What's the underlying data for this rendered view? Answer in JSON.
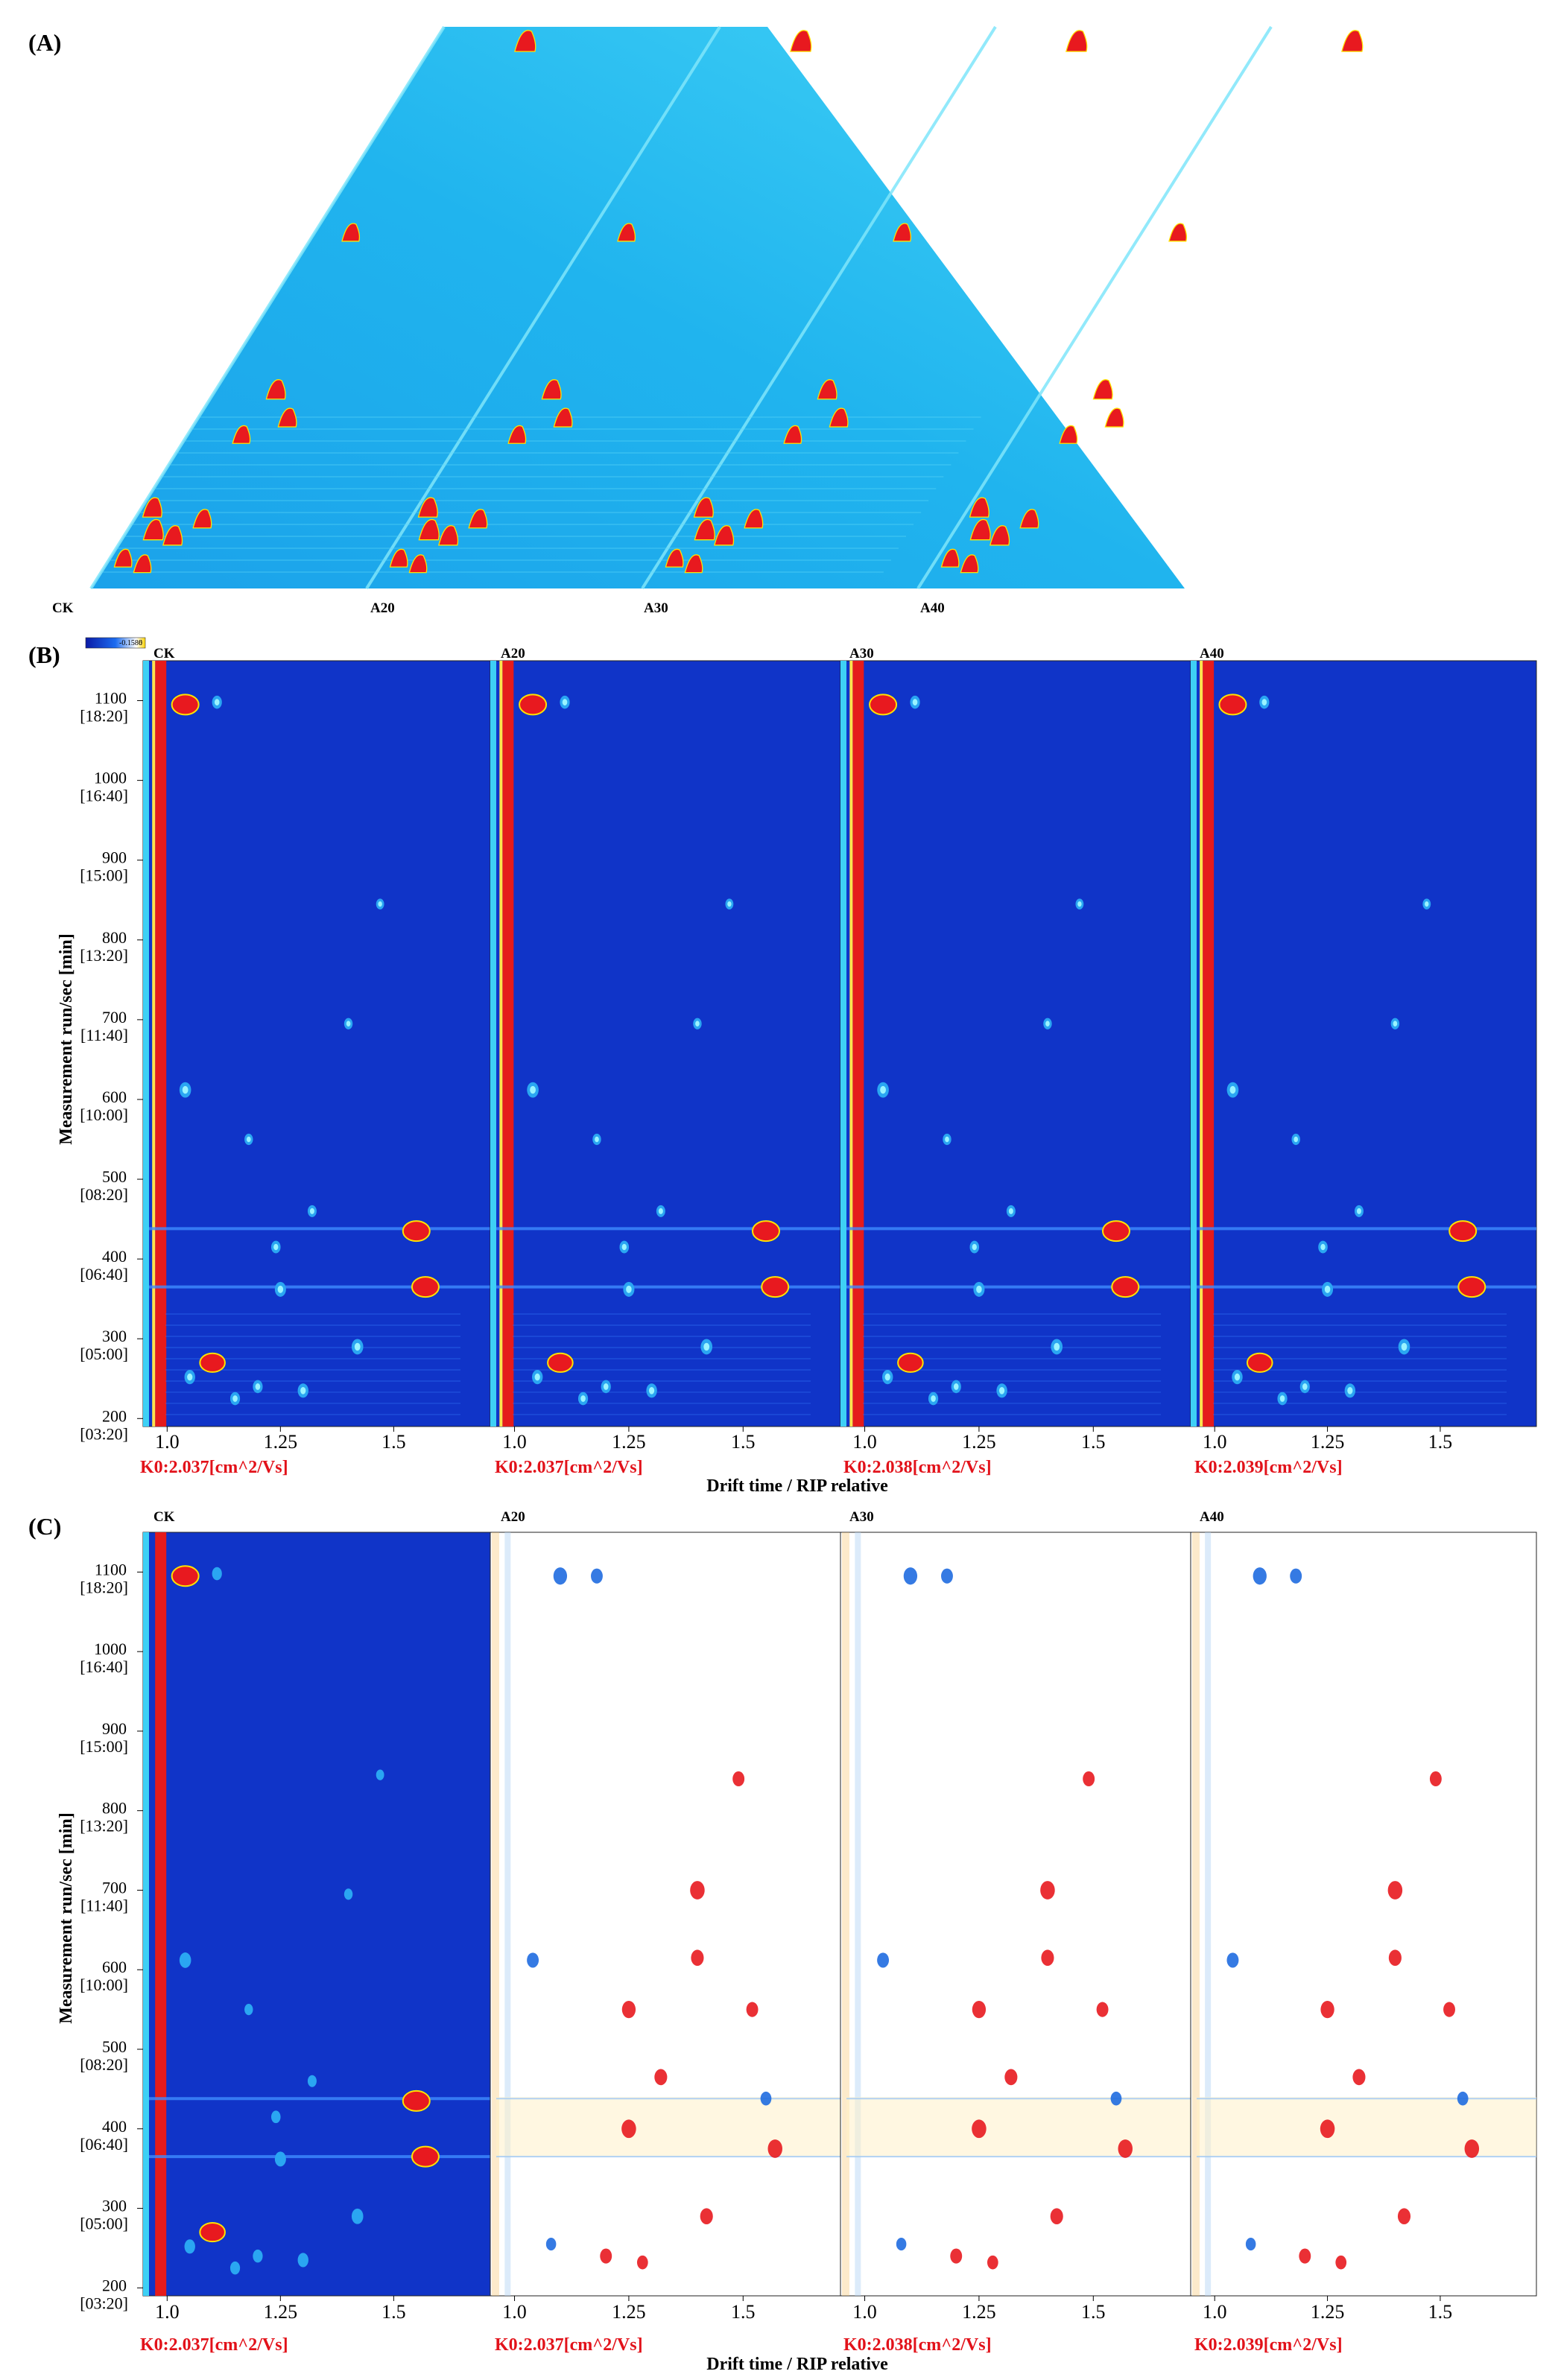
{
  "figure": {
    "panel_labels": [
      "(A)",
      "(B)",
      "(C)"
    ],
    "samples": [
      "CK",
      "A20",
      "A30",
      "A40"
    ],
    "k0_labels": [
      "K0:2.037[cm^2/Vs]",
      "K0:2.037[cm^2/Vs]",
      "K0:2.038[cm^2/Vs]",
      "K0:2.039[cm^2/Vs]"
    ],
    "colorbar_labels": [
      "-0.1586",
      "0"
    ]
  },
  "chart_data": [
    {
      "type": "heatmap",
      "panel": "(A)",
      "view": "3D topographic",
      "series": [
        "CK",
        "A20",
        "A30",
        "A40"
      ]
    },
    {
      "type": "heatmap",
      "panel": "(B)",
      "series": [
        "CK",
        "A20",
        "A30",
        "A40"
      ],
      "xlabel": "Drift time / RIP relative",
      "ylabel": "Measurement run/sec [min]",
      "xticks": [
        "1.0",
        "1.25",
        "1.5"
      ],
      "xticks_values": [
        1.0,
        1.25,
        1.5
      ],
      "xlim": [
        0.96,
        1.7
      ],
      "yticks_values": [
        200,
        300,
        400,
        500,
        600,
        700,
        800,
        900,
        1000,
        1100
      ],
      "yticks_sec": [
        "200",
        "300",
        "400",
        "500",
        "600",
        "700",
        "800",
        "900",
        "1000",
        "1100"
      ],
      "yticks_min": [
        "[03:20]",
        "[05:00]",
        "[06:40]",
        "[08:20]",
        "[10:00]",
        "[11:40]",
        "[13:20]",
        "[15:00]",
        "[16:40]",
        "[18:20]"
      ],
      "ylim": [
        190,
        1150
      ],
      "peaks": [
        [
          1.04,
          1095,
          1
        ],
        [
          1.11,
          1098,
          0.6
        ],
        [
          1.04,
          612,
          0.8
        ],
        [
          1.18,
          550,
          0.45
        ],
        [
          1.24,
          415,
          0.55
        ],
        [
          1.25,
          362,
          0.75
        ],
        [
          1.47,
          845,
          0.4
        ],
        [
          1.4,
          695,
          0.45
        ],
        [
          1.32,
          460,
          0.5
        ],
        [
          1.55,
          435,
          1
        ],
        [
          1.57,
          365,
          1
        ],
        [
          1.42,
          290,
          0.8
        ],
        [
          1.1,
          270,
          0.9
        ],
        [
          1.05,
          252,
          0.7
        ],
        [
          1.2,
          240,
          0.6
        ],
        [
          1.3,
          235,
          0.7
        ],
        [
          1.15,
          225,
          0.6
        ]
      ]
    },
    {
      "type": "heatmap",
      "panel": "(C)",
      "view": "difference plot, CK as reference",
      "series": [
        "CK",
        "A20",
        "A30",
        "A40"
      ],
      "xlabel": "Drift time / RIP relative",
      "ylabel": "Measurement run/sec [min]",
      "xticks": [
        "1.0",
        "1.25",
        "1.5"
      ],
      "xticks_values": [
        1.0,
        1.25,
        1.5
      ],
      "xlim": [
        0.96,
        1.7
      ],
      "yticks_values": [
        200,
        300,
        400,
        500,
        600,
        700,
        800,
        900,
        1000,
        1100
      ],
      "yticks_sec": [
        "200",
        "300",
        "400",
        "500",
        "600",
        "700",
        "800",
        "900",
        "1000",
        "1100"
      ],
      "yticks_min": [
        "[03:20]",
        "[05:00]",
        "[06:40]",
        "[08:20]",
        "[10:00]",
        "[11:40]",
        "[13:20]",
        "[15:00]",
        "[16:40]",
        "[18:20]"
      ],
      "ylim": [
        190,
        1150
      ],
      "diff_peaks": [
        [
          1.4,
          700,
          1
        ],
        [
          1.49,
          840,
          0.7
        ],
        [
          1.4,
          615,
          0.8
        ],
        [
          1.25,
          550,
          0.9
        ],
        [
          1.52,
          550,
          0.7
        ],
        [
          1.25,
          400,
          1
        ],
        [
          1.57,
          375,
          1
        ],
        [
          1.32,
          465,
          0.8
        ],
        [
          1.42,
          290,
          0.8
        ],
        [
          1.1,
          1095,
          -0.9
        ],
        [
          1.18,
          1095,
          -0.7
        ],
        [
          1.04,
          612,
          -0.7
        ],
        [
          1.55,
          438,
          -0.6
        ],
        [
          1.2,
          240,
          0.7
        ],
        [
          1.28,
          232,
          0.6
        ],
        [
          1.08,
          255,
          -0.5
        ]
      ]
    }
  ]
}
